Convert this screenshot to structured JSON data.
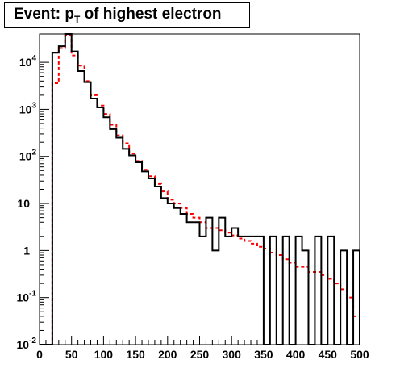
{
  "title": {
    "prefix": "Event: p",
    "subscript": "T",
    "suffix": " of highest electron"
  },
  "chart_data": {
    "type": "line",
    "title": "Event: p_T of highest electron",
    "xlabel": "",
    "ylabel": "",
    "xlim": [
      0,
      500
    ],
    "ylim": [
      0.01,
      40000
    ],
    "yscale": "log",
    "bin_width": 10,
    "x_ticks": [
      "0",
      "50",
      "100",
      "150",
      "200",
      "250",
      "300",
      "350",
      "400",
      "450",
      "500"
    ],
    "y_ticks": [
      {
        "base": "10",
        "exp": "-2"
      },
      {
        "base": "10",
        "exp": "-1"
      },
      {
        "base": "1",
        "exp": ""
      },
      {
        "base": "10",
        "exp": ""
      },
      {
        "base": "10",
        "exp": "2"
      },
      {
        "base": "10",
        "exp": "3"
      },
      {
        "base": "10",
        "exp": "4"
      }
    ],
    "series": [
      {
        "style": "solid",
        "color": "#000000",
        "bin_edges": [
          0,
          10,
          20,
          30,
          40,
          50,
          60,
          70,
          80,
          90,
          100,
          110,
          120,
          130,
          140,
          150,
          160,
          170,
          180,
          190,
          200,
          210,
          220,
          230,
          240,
          250,
          260,
          270,
          280,
          290,
          300,
          310,
          320,
          330,
          340,
          350,
          360,
          370,
          380,
          390,
          400,
          410,
          420,
          430,
          440,
          450,
          460,
          470,
          480,
          490,
          500
        ],
        "values": [
          0,
          0,
          16000,
          22000,
          40000,
          17000,
          6500,
          3800,
          1700,
          1100,
          680,
          380,
          250,
          145,
          105,
          75,
          48,
          34,
          23,
          13,
          10,
          8,
          6,
          4,
          4,
          2,
          5,
          1,
          5,
          2,
          3,
          2,
          2,
          2,
          2,
          0,
          2,
          0,
          2,
          0,
          2,
          1,
          0,
          2,
          0,
          2,
          0,
          1,
          0,
          1
        ]
      },
      {
        "style": "dashed",
        "color": "#ff0000",
        "bin_edges": [
          0,
          10,
          20,
          30,
          40,
          50,
          60,
          70,
          80,
          90,
          100,
          110,
          120,
          130,
          140,
          150,
          160,
          170,
          180,
          190,
          200,
          210,
          220,
          230,
          240,
          250,
          260,
          270,
          280,
          290,
          300,
          310,
          320,
          330,
          340,
          350,
          360,
          370,
          380,
          390,
          400,
          410,
          420,
          430,
          440,
          450,
          460,
          470,
          480,
          490,
          500
        ],
        "values": [
          0,
          0,
          3600,
          20000,
          37000,
          14000,
          8500,
          4000,
          2000,
          1200,
          800,
          470,
          280,
          190,
          115,
          80,
          52,
          38,
          26,
          18,
          12,
          10,
          8,
          6,
          5,
          4,
          3,
          3,
          2.7,
          2.4,
          2.1,
          1.8,
          1.6,
          1.4,
          1.2,
          1.1,
          0.9,
          0.8,
          0.65,
          0.55,
          0.45,
          0.45,
          0.35,
          0.35,
          0.3,
          0.25,
          0.2,
          0.15,
          0.1,
          0.04
        ]
      }
    ]
  }
}
